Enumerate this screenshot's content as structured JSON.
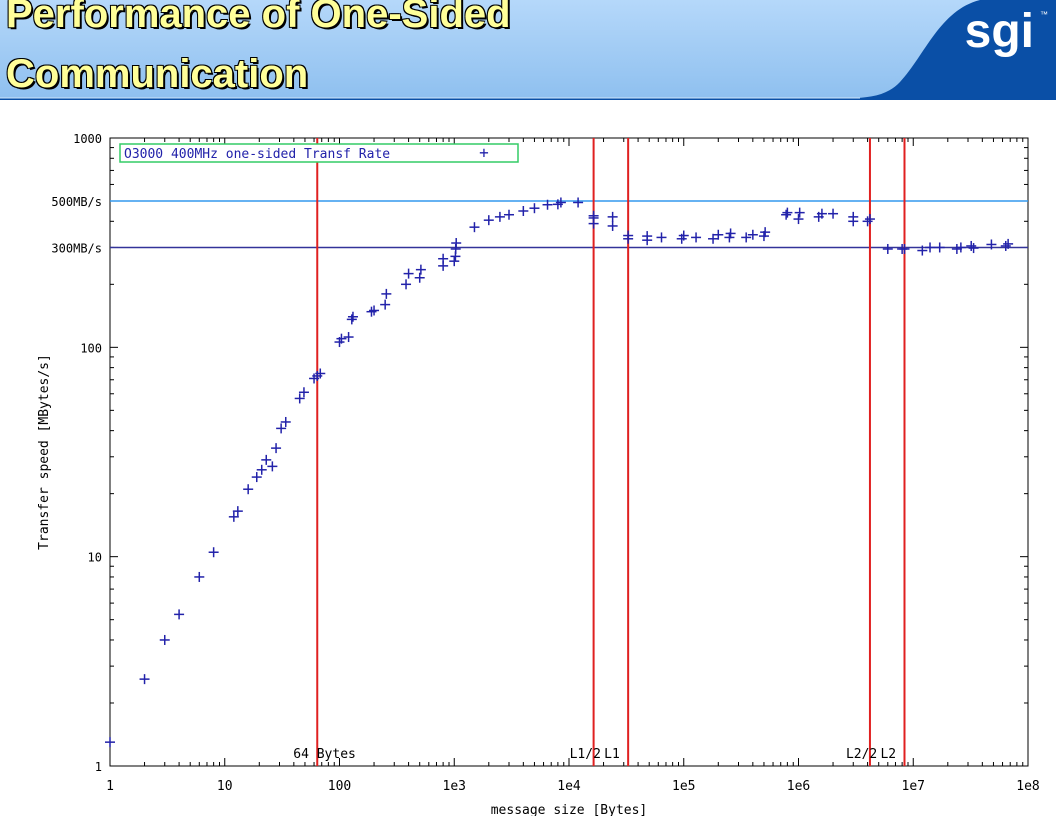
{
  "slide": {
    "title_line1": "Performance of One-Sided",
    "title_line2": "Communication",
    "logo": "sgi",
    "logo_tm": "™",
    "colors": {
      "header_bg": "#0a4fa6",
      "header_band": "#9cc8f4",
      "title_text": "#ffff99"
    }
  },
  "chart_data": {
    "type": "scatter",
    "title": "",
    "xlabel": "message size [Bytes]",
    "ylabel": "Transfer speed [MBytes/s]",
    "x_scale": "log",
    "y_scale": "log",
    "xlim": [
      1,
      100000000
    ],
    "ylim": [
      1,
      1000
    ],
    "x_ticks": [
      {
        "value": 1,
        "label": "1"
      },
      {
        "value": 10,
        "label": "10"
      },
      {
        "value": 100,
        "label": "100"
      },
      {
        "value": 1000,
        "label": "1e3"
      },
      {
        "value": 10000,
        "label": "1e4"
      },
      {
        "value": 100000,
        "label": "1e5"
      },
      {
        "value": 1000000,
        "label": "1e6"
      },
      {
        "value": 10000000,
        "label": "1e7"
      },
      {
        "value": 100000000,
        "label": "1e8"
      }
    ],
    "y_ticks": [
      {
        "value": 1,
        "label": "1"
      },
      {
        "value": 10,
        "label": "10"
      },
      {
        "value": 100,
        "label": "100"
      },
      {
        "value": 300,
        "label": "300MB/s"
      },
      {
        "value": 500,
        "label": "500MB/s"
      },
      {
        "value": 1000,
        "label": "1000"
      }
    ],
    "legend": {
      "position": "top-left",
      "label": "O3000 400MHz one-sided Transf Rate",
      "marker": "+",
      "color": "#33cc66"
    },
    "hlines": [
      {
        "value": 500,
        "color": "#3399ee"
      },
      {
        "value": 300,
        "color": "#333399"
      }
    ],
    "vlines": [
      {
        "value": 64,
        "label": "64 Bytes",
        "color": "#e02020"
      },
      {
        "value": 16384,
        "label": "L1/2",
        "color": "#e02020"
      },
      {
        "value": 32768,
        "label": "L1",
        "color": "#e02020"
      },
      {
        "value": 4194304,
        "label": "L2/2",
        "color": "#e02020"
      },
      {
        "value": 8388608,
        "label": "L2",
        "color": "#e02020"
      }
    ],
    "series": [
      {
        "marker": "+",
        "color": "#2222aa",
        "points": [
          [
            1,
            1.3
          ],
          [
            2,
            2.6
          ],
          [
            3,
            4.0
          ],
          [
            4,
            5.3
          ],
          [
            6,
            8.0
          ],
          [
            8,
            10.5
          ],
          [
            12,
            15.5
          ],
          [
            13,
            16.5
          ],
          [
            16,
            21
          ],
          [
            19,
            24
          ],
          [
            21,
            26
          ],
          [
            23,
            29
          ],
          [
            26,
            27
          ],
          [
            28,
            33
          ],
          [
            31,
            41
          ],
          [
            34,
            44
          ],
          [
            45,
            57
          ],
          [
            49,
            61
          ],
          [
            60,
            71
          ],
          [
            64,
            73
          ],
          [
            68,
            75
          ],
          [
            100,
            106
          ],
          [
            104,
            110
          ],
          [
            120,
            112
          ],
          [
            128,
            136
          ],
          [
            131,
            140
          ],
          [
            190,
            148
          ],
          [
            200,
            150
          ],
          [
            250,
            160
          ],
          [
            256,
            180
          ],
          [
            380,
            200
          ],
          [
            400,
            225
          ],
          [
            500,
            215
          ],
          [
            512,
            235
          ],
          [
            800,
            245
          ],
          [
            800,
            265
          ],
          [
            1000,
            258
          ],
          [
            1024,
            272
          ],
          [
            1030,
            295
          ],
          [
            1040,
            315
          ],
          [
            1500,
            375
          ],
          [
            2000,
            405
          ],
          [
            2500,
            420
          ],
          [
            3000,
            430
          ],
          [
            4000,
            448
          ],
          [
            5000,
            462
          ],
          [
            6500,
            480
          ],
          [
            8000,
            482
          ],
          [
            8500,
            492
          ],
          [
            12000,
            492
          ],
          [
            16384,
            390
          ],
          [
            16384,
            415
          ],
          [
            16384,
            425
          ],
          [
            24000,
            380
          ],
          [
            24000,
            420
          ],
          [
            32768,
            330
          ],
          [
            32768,
            342
          ],
          [
            48000,
            325
          ],
          [
            48000,
            340
          ],
          [
            64000,
            335
          ],
          [
            96000,
            330
          ],
          [
            100000,
            342
          ],
          [
            128000,
            335
          ],
          [
            180000,
            330
          ],
          [
            200000,
            345
          ],
          [
            250000,
            335
          ],
          [
            256000,
            350
          ],
          [
            350000,
            335
          ],
          [
            400000,
            345
          ],
          [
            500000,
            340
          ],
          [
            512000,
            355
          ],
          [
            780000,
            430
          ],
          [
            800000,
            440
          ],
          [
            1000000,
            410
          ],
          [
            1024000,
            440
          ],
          [
            1500000,
            420
          ],
          [
            1600000,
            435
          ],
          [
            2000000,
            435
          ],
          [
            3000000,
            400
          ],
          [
            3000000,
            420
          ],
          [
            4000000,
            400
          ],
          [
            4194304,
            410
          ],
          [
            6000000,
            295
          ],
          [
            8000000,
            295
          ],
          [
            8388608,
            295
          ],
          [
            12000000,
            290
          ],
          [
            14000000,
            300
          ],
          [
            17000000,
            300
          ],
          [
            24000000,
            295
          ],
          [
            26000000,
            300
          ],
          [
            32000000,
            305
          ],
          [
            33554432,
            298
          ],
          [
            48000000,
            310
          ],
          [
            64000000,
            305
          ],
          [
            67108864,
            312
          ]
        ]
      }
    ]
  }
}
